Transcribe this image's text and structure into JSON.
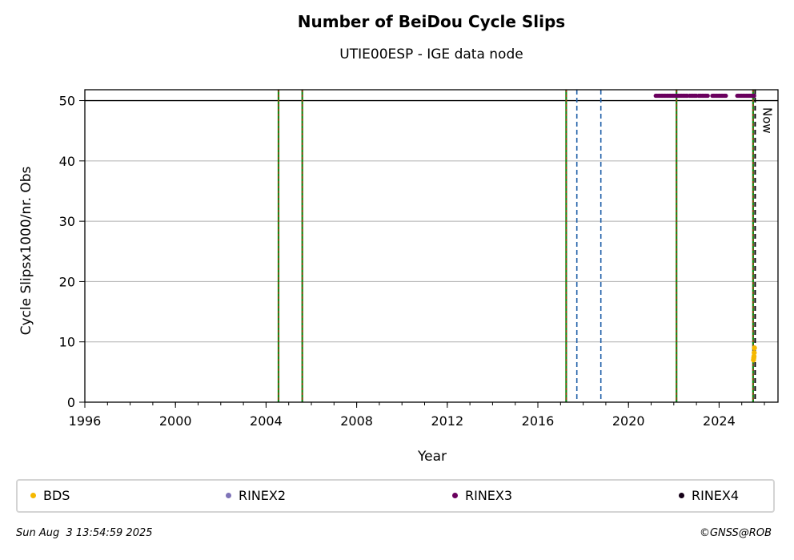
{
  "chart_data": {
    "type": "scatter",
    "title": "Number of BeiDou Cycle Slips",
    "subtitle": "UTIE00ESP - IGE data node",
    "xlabel": "Year",
    "ylabel": "Cycle Slipsx1000/nr. Obs",
    "xlim": [
      1996,
      2026.6
    ],
    "ylim": [
      0,
      51.8
    ],
    "xticks": [
      1996,
      2000,
      2004,
      2008,
      2012,
      2016,
      2020,
      2024
    ],
    "yticks": [
      0,
      10,
      20,
      30,
      40,
      50
    ],
    "grid": "horizontal",
    "threshold_line": 50,
    "now_label": "Now",
    "now_x": 2025.59,
    "green_red_events": [
      2004.55,
      2005.6,
      2017.25,
      2022.12,
      2025.5
    ],
    "blue_dashed_events": [
      2017.72,
      2018.78
    ],
    "series": [
      {
        "name": "BDS",
        "color": "#f5b800",
        "points": [
          [
            2025.52,
            7.0
          ],
          [
            2025.54,
            7.6
          ],
          [
            2025.55,
            8.2
          ],
          [
            2025.56,
            9.0
          ],
          [
            2025.53,
            7.3
          ]
        ]
      },
      {
        "name": "RINEX2",
        "color": "#7f74b8",
        "points": []
      },
      {
        "name": "RINEX3",
        "color": "#6a005e",
        "points_ranges": [
          [
            2021.2,
            2022.6
          ],
          [
            2022.7,
            2023.0
          ],
          [
            2023.1,
            2023.5
          ],
          [
            2023.7,
            2024.3
          ],
          [
            2024.8,
            2025.55
          ]
        ],
        "points_y": 50.8
      },
      {
        "name": "RINEX4",
        "color": "#150018",
        "points": []
      }
    ]
  },
  "legend": {
    "items": [
      {
        "label": "BDS",
        "color": "#f5b800"
      },
      {
        "label": "RINEX2",
        "color": "#7f74b8"
      },
      {
        "label": "RINEX3",
        "color": "#6a005e"
      },
      {
        "label": "RINEX4",
        "color": "#150018"
      }
    ]
  },
  "footer": {
    "date": "Sun Aug  3 13:54:59 2025",
    "copyright": "©GNSS@ROB"
  }
}
